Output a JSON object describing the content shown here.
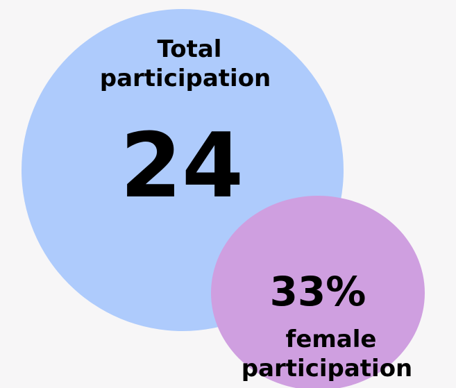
{
  "total": {
    "label_lines": [
      "Total",
      "participation"
    ],
    "value": "24"
  },
  "female": {
    "value": "33%",
    "label_lines": [
      "female",
      "participation"
    ]
  }
}
